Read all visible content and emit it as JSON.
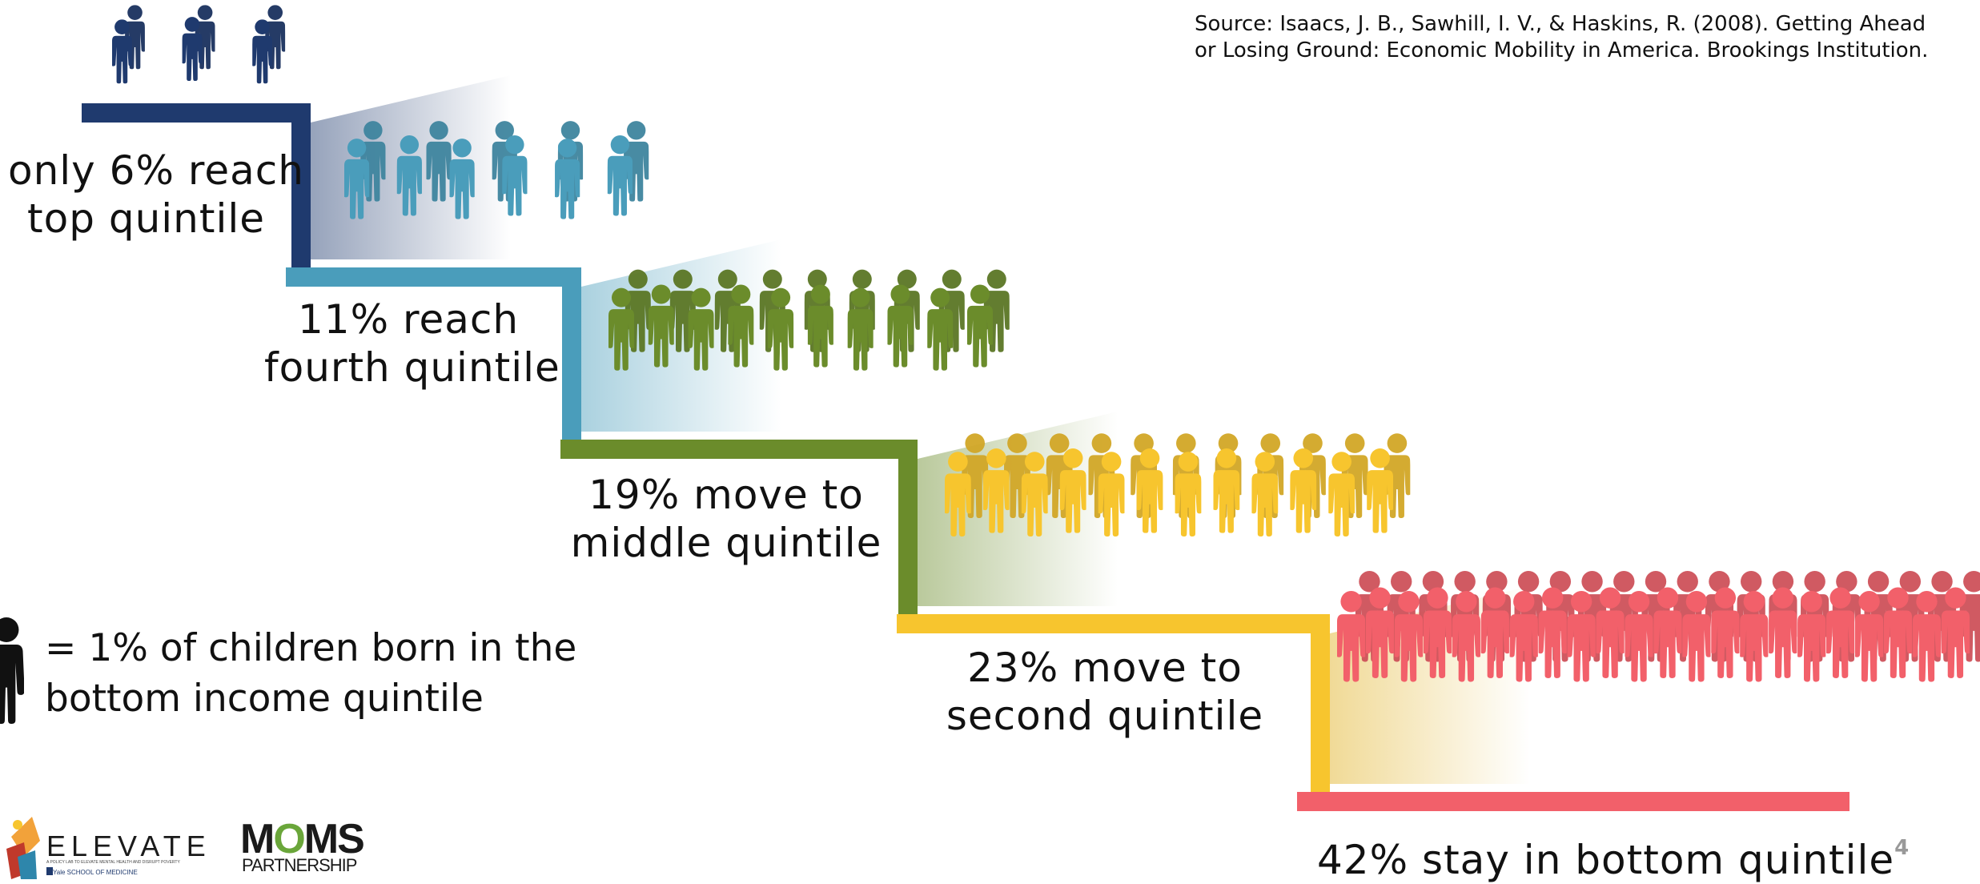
{
  "source": {
    "line1": "Source: Isaacs, J. B., Sawhill, I. V., & Haskins, R. (2008). Getting Ahead",
    "line2": "or Losing Ground: Economic Mobility in America. Brookings Institution."
  },
  "steps": [
    {
      "line1": "only 6% reach",
      "line2": "top quintile",
      "count": 6,
      "color": "#1f3a6e"
    },
    {
      "line1": "11% reach",
      "line2": "fourth quintile",
      "count": 11,
      "color": "#4a9dbb"
    },
    {
      "line1": "19% move to",
      "line2": "middle quintile",
      "count": 19,
      "color": "#6b8c2b"
    },
    {
      "line1": "23% move to",
      "line2": "second quintile",
      "count": 23,
      "color": "#f7c52e"
    },
    {
      "line1": "42% stay in bottom quintile",
      "line2": "",
      "count": 42,
      "color": "#f2606a"
    }
  ],
  "legend": {
    "line1": "= 1% of children born in the",
    "line2": "bottom income quintile",
    "icon": "person-icon"
  },
  "page_number": "4",
  "logos": {
    "elevate": "ELEVATE",
    "elevate_tagline": "A POLICY LAB TO ELEVATE MENTAL HEALTH AND DISRUPT POVERTY",
    "elevate_sub": "Yale SCHOOL OF MEDICINE",
    "moms_m1": "M",
    "moms_o": "O",
    "moms_rest": "MS",
    "moms_sub": "PARTNERSHIP"
  }
}
